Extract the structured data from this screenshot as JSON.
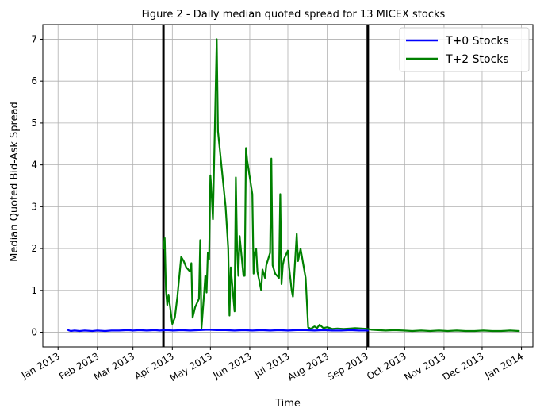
{
  "chart_data": {
    "type": "line",
    "title": "Figure 2 - Daily median quoted spread for 13 MICEX stocks",
    "xlabel": "Time",
    "ylabel": "Median Quoted Bid-Ask Spread",
    "xlim": [
      "2012-12-20",
      "2014-01-10"
    ],
    "ylim": [
      -0.35,
      7.35
    ],
    "grid": true,
    "legend_position": "top-right",
    "x_ticks": [
      {
        "date": "2013-01-01",
        "label": "Jan 2013"
      },
      {
        "date": "2013-02-01",
        "label": "Feb 2013"
      },
      {
        "date": "2013-03-01",
        "label": "Mar 2013"
      },
      {
        "date": "2013-04-01",
        "label": "Apr 2013"
      },
      {
        "date": "2013-05-01",
        "label": "May 2013"
      },
      {
        "date": "2013-06-01",
        "label": "Jun 2013"
      },
      {
        "date": "2013-07-01",
        "label": "Jul 2013"
      },
      {
        "date": "2013-08-01",
        "label": "Aug 2013"
      },
      {
        "date": "2013-09-01",
        "label": "Sep 2013"
      },
      {
        "date": "2013-10-01",
        "label": "Oct 2013"
      },
      {
        "date": "2013-11-01",
        "label": "Nov 2013"
      },
      {
        "date": "2013-12-01",
        "label": "Dec 2013"
      },
      {
        "date": "2014-01-01",
        "label": "Jan 2014"
      }
    ],
    "y_ticks": [
      0,
      1,
      2,
      3,
      4,
      5,
      6,
      7
    ],
    "vertical_lines": [
      "2013-03-25",
      "2013-09-02"
    ],
    "series": [
      {
        "name": "T+0 Stocks",
        "color": "#0000ff",
        "points": [
          [
            "2013-01-09",
            0.05
          ],
          [
            "2013-01-11",
            0.03
          ],
          [
            "2013-01-14",
            0.04
          ],
          [
            "2013-01-18",
            0.03
          ],
          [
            "2013-01-22",
            0.04
          ],
          [
            "2013-01-28",
            0.03
          ],
          [
            "2013-02-01",
            0.04
          ],
          [
            "2013-02-07",
            0.03
          ],
          [
            "2013-02-12",
            0.04
          ],
          [
            "2013-02-18",
            0.04
          ],
          [
            "2013-02-25",
            0.05
          ],
          [
            "2013-03-01",
            0.04
          ],
          [
            "2013-03-06",
            0.05
          ],
          [
            "2013-03-12",
            0.04
          ],
          [
            "2013-03-18",
            0.05
          ],
          [
            "2013-03-22",
            0.04
          ],
          [
            "2013-03-27",
            0.05
          ],
          [
            "2013-04-02",
            0.04
          ],
          [
            "2013-04-08",
            0.05
          ],
          [
            "2013-04-15",
            0.04
          ],
          [
            "2013-04-22",
            0.05
          ],
          [
            "2013-04-29",
            0.06
          ],
          [
            "2013-05-06",
            0.05
          ],
          [
            "2013-05-13",
            0.05
          ],
          [
            "2013-05-20",
            0.04
          ],
          [
            "2013-05-27",
            0.05
          ],
          [
            "2013-06-03",
            0.04
          ],
          [
            "2013-06-10",
            0.05
          ],
          [
            "2013-06-17",
            0.04
          ],
          [
            "2013-06-24",
            0.05
          ],
          [
            "2013-07-01",
            0.04
          ],
          [
            "2013-07-08",
            0.05
          ],
          [
            "2013-07-15",
            0.05
          ],
          [
            "2013-07-22",
            0.04
          ],
          [
            "2013-07-29",
            0.05
          ],
          [
            "2013-08-05",
            0.04
          ],
          [
            "2013-08-12",
            0.04
          ],
          [
            "2013-08-19",
            0.05
          ],
          [
            "2013-08-26",
            0.04
          ],
          [
            "2013-09-02",
            0.04
          ]
        ]
      },
      {
        "name": "T+2 Stocks",
        "color": "#008000",
        "points": [
          [
            "2013-03-25",
            2.0
          ],
          [
            "2013-03-26",
            2.25
          ],
          [
            "2013-03-27",
            1.0
          ],
          [
            "2013-03-28",
            0.65
          ],
          [
            "2013-03-29",
            0.9
          ],
          [
            "2013-04-01",
            0.2
          ],
          [
            "2013-04-03",
            0.35
          ],
          [
            "2013-04-05",
            0.85
          ],
          [
            "2013-04-08",
            1.8
          ],
          [
            "2013-04-10",
            1.7
          ],
          [
            "2013-04-12",
            1.55
          ],
          [
            "2013-04-15",
            1.45
          ],
          [
            "2013-04-16",
            1.65
          ],
          [
            "2013-04-17",
            0.35
          ],
          [
            "2013-04-19",
            0.6
          ],
          [
            "2013-04-22",
            0.8
          ],
          [
            "2013-04-23",
            2.2
          ],
          [
            "2013-04-24",
            0.1
          ],
          [
            "2013-04-26",
            0.9
          ],
          [
            "2013-04-27",
            1.35
          ],
          [
            "2013-04-28",
            0.95
          ],
          [
            "2013-04-29",
            1.9
          ],
          [
            "2013-04-30",
            1.75
          ],
          [
            "2013-05-01",
            3.75
          ],
          [
            "2013-05-02",
            3.3
          ],
          [
            "2013-05-03",
            2.7
          ],
          [
            "2013-05-06",
            7.0
          ],
          [
            "2013-05-07",
            4.8
          ],
          [
            "2013-05-08",
            4.5
          ],
          [
            "2013-05-13",
            3.0
          ],
          [
            "2013-05-15",
            2.0
          ],
          [
            "2013-05-16",
            0.4
          ],
          [
            "2013-05-17",
            1.55
          ],
          [
            "2013-05-20",
            0.5
          ],
          [
            "2013-05-21",
            3.7
          ],
          [
            "2013-05-22",
            2.0
          ],
          [
            "2013-05-23",
            1.35
          ],
          [
            "2013-05-24",
            2.3
          ],
          [
            "2013-05-27",
            1.35
          ],
          [
            "2013-05-28",
            1.35
          ],
          [
            "2013-05-29",
            4.4
          ],
          [
            "2013-05-30",
            4.1
          ],
          [
            "2013-05-31",
            3.9
          ],
          [
            "2013-06-03",
            3.3
          ],
          [
            "2013-06-04",
            1.4
          ],
          [
            "2013-06-05",
            1.9
          ],
          [
            "2013-06-06",
            2.0
          ],
          [
            "2013-06-07",
            1.45
          ],
          [
            "2013-06-10",
            1.0
          ],
          [
            "2013-06-11",
            1.5
          ],
          [
            "2013-06-13",
            1.3
          ],
          [
            "2013-06-14",
            1.6
          ],
          [
            "2013-06-17",
            1.9
          ],
          [
            "2013-06-18",
            4.15
          ],
          [
            "2013-06-19",
            1.6
          ],
          [
            "2013-06-21",
            1.4
          ],
          [
            "2013-06-24",
            1.3
          ],
          [
            "2013-06-25",
            3.3
          ],
          [
            "2013-06-26",
            1.15
          ],
          [
            "2013-06-27",
            1.6
          ],
          [
            "2013-06-28",
            1.75
          ],
          [
            "2013-07-01",
            1.95
          ],
          [
            "2013-07-02",
            1.55
          ],
          [
            "2013-07-04",
            1.0
          ],
          [
            "2013-07-05",
            0.85
          ],
          [
            "2013-07-08",
            2.35
          ],
          [
            "2013-07-09",
            1.7
          ],
          [
            "2013-07-11",
            2.0
          ],
          [
            "2013-07-15",
            1.3
          ],
          [
            "2013-07-17",
            0.12
          ],
          [
            "2013-07-19",
            0.08
          ],
          [
            "2013-07-22",
            0.14
          ],
          [
            "2013-07-24",
            0.1
          ],
          [
            "2013-07-26",
            0.18
          ],
          [
            "2013-07-29",
            0.1
          ],
          [
            "2013-08-01",
            0.12
          ],
          [
            "2013-08-05",
            0.08
          ],
          [
            "2013-08-09",
            0.09
          ],
          [
            "2013-08-14",
            0.08
          ],
          [
            "2013-08-19",
            0.09
          ],
          [
            "2013-08-23",
            0.1
          ],
          [
            "2013-08-28",
            0.09
          ],
          [
            "2013-09-02",
            0.08
          ],
          [
            "2013-09-05",
            0.06
          ],
          [
            "2013-09-10",
            0.05
          ],
          [
            "2013-09-16",
            0.04
          ],
          [
            "2013-09-23",
            0.05
          ],
          [
            "2013-09-30",
            0.04
          ],
          [
            "2013-10-07",
            0.03
          ],
          [
            "2013-10-14",
            0.04
          ],
          [
            "2013-10-21",
            0.03
          ],
          [
            "2013-10-28",
            0.04
          ],
          [
            "2013-11-04",
            0.03
          ],
          [
            "2013-11-11",
            0.04
          ],
          [
            "2013-11-18",
            0.03
          ],
          [
            "2013-11-25",
            0.03
          ],
          [
            "2013-12-02",
            0.04
          ],
          [
            "2013-12-09",
            0.03
          ],
          [
            "2013-12-16",
            0.03
          ],
          [
            "2013-12-23",
            0.04
          ],
          [
            "2013-12-30",
            0.03
          ]
        ]
      }
    ]
  }
}
